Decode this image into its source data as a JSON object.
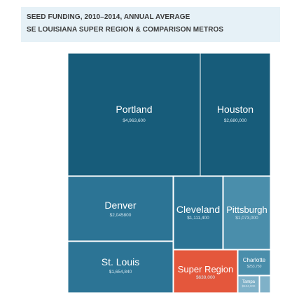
{
  "title": {
    "line1": "SEED FUNDING, 2010–2014, ANNUAL AVERAGE",
    "line2": "SE LOUISIANA SUPER REGION & COMPARISON METROS"
  },
  "colors": {
    "dark": "#175c7a",
    "mid": "#2c7495",
    "light": "#4a8eab",
    "lighter": "#7fb1c8",
    "highlight": "#e4573c"
  },
  "chart_data": {
    "type": "treemap",
    "title": "SEED FUNDING, 2010–2014, ANNUAL AVERAGE",
    "subtitle": "SE LOUISIANA SUPER REGION & COMPARISON METROS",
    "items": [
      {
        "name": "Portland",
        "label": "$4,963,600",
        "value": 4963600
      },
      {
        "name": "Houston",
        "label": "$2,680,000",
        "value": 2680000
      },
      {
        "name": "Denver",
        "label": "$2,045800",
        "value": 2045800
      },
      {
        "name": "St. Louis",
        "label": "$1,654,840",
        "value": 1654840
      },
      {
        "name": "Cleveland",
        "label": "$1,111,400",
        "value": 1111400
      },
      {
        "name": "Pittsburgh",
        "label": "$1,073,000",
        "value": 1073000
      },
      {
        "name": "Super Region",
        "label": "$639,000",
        "value": 639000,
        "highlight": true
      },
      {
        "name": "Charlotte",
        "label": "$253,750",
        "value": 253750
      },
      {
        "name": "Tampa",
        "label": "$104,000",
        "value": 104000
      }
    ]
  }
}
